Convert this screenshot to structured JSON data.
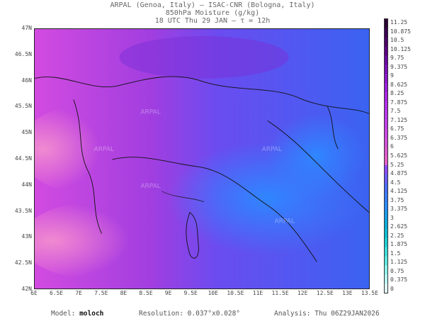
{
  "header": {
    "line1": "ARPAL (Genoa, Italy)  —  ISAC-CNR (Bologna, Italy)",
    "line2": "850hPa Moisture (g/kg)",
    "line3": "18 UTC Thu 29 JAN  —  τ = 12h"
  },
  "map": {
    "lat_labels": [
      "47N",
      "46.5N",
      "46N",
      "45.5N",
      "45N",
      "44.5N",
      "44N",
      "43.5N",
      "43N",
      "42.5N",
      "42N"
    ],
    "lon_labels": [
      "6E",
      "6.5E",
      "7E",
      "7.5E",
      "8E",
      "8.5E",
      "9E",
      "9.5E",
      "10E",
      "10.5E",
      "11E",
      "11.5E",
      "12E",
      "12.5E",
      "13E",
      "13.5E"
    ],
    "watermark": "ARPAL"
  },
  "colorbar": {
    "labels": [
      "11.25",
      "10.875",
      "10.5",
      "10.125",
      "9.75",
      "9.375",
      "9",
      "8.625",
      "8.25",
      "7.875",
      "7.5",
      "7.125",
      "6.75",
      "6.375",
      "6",
      "5.625",
      "5.25",
      "4.875",
      "4.5",
      "4.125",
      "3.75",
      "3.375",
      "3",
      "2.625",
      "2.25",
      "1.875",
      "1.5",
      "1.125",
      "0.75",
      "0.375",
      "0"
    ],
    "colors": [
      "#2a0033",
      "#3a0050",
      "#4b0066",
      "#5c0080",
      "#6a0aa0",
      "#7a10b8",
      "#8a18c8",
      "#9a20d8",
      "#a828e0",
      "#b030e6",
      "#b83ae8",
      "#c040e8",
      "#c848e0",
      "#d050d8",
      "#d858cc",
      "#e060c4",
      "#8a4cff",
      "#6a5cff",
      "#4a6cff",
      "#3a7cff",
      "#2a8cff",
      "#1a9ce8",
      "#10acd8",
      "#10bcd0",
      "#20ccd0",
      "#40dcd8",
      "#60e8e0",
      "#8ef2ea",
      "#b8f8f2",
      "#e0fcfa"
    ]
  },
  "footer": {
    "model_label": "Model:",
    "model_value": "moloch",
    "resolution_label": "Resolution:",
    "resolution_value": "0.037°x0.028°",
    "analysis_label": "Analysis:",
    "analysis_value": "Thu 06Z29JAN2026"
  }
}
